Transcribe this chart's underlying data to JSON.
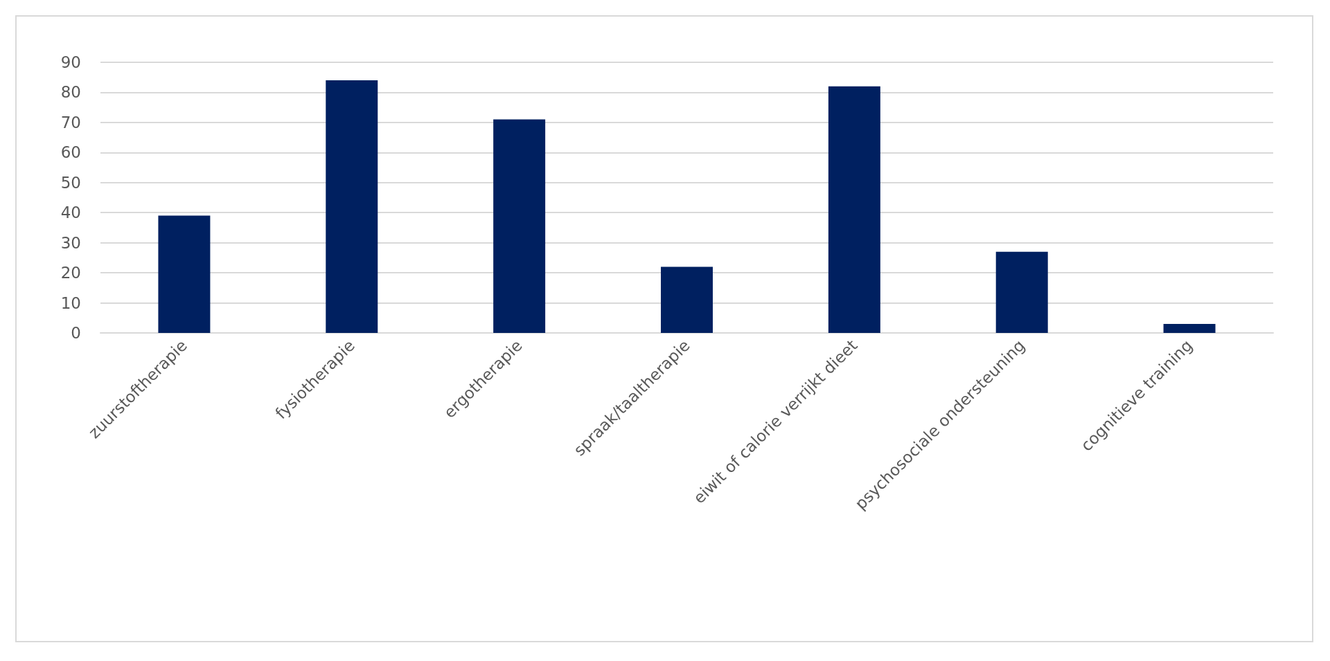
{
  "chart_data": {
    "type": "bar",
    "categories": [
      "zuurstoftherapie",
      "fysiotherapie",
      "ergotherapie",
      "spraak/taaltherapie",
      "eiwit of calorie verrijkt dieet",
      "psychosociale ondersteuning",
      "cognitieve training"
    ],
    "values": [
      39,
      84,
      71,
      22,
      82,
      27,
      3
    ],
    "color": "#002060",
    "ylim": [
      0,
      90
    ],
    "yticks": [
      0,
      10,
      20,
      30,
      40,
      50,
      60,
      70,
      80,
      90
    ],
    "grid": "y"
  }
}
